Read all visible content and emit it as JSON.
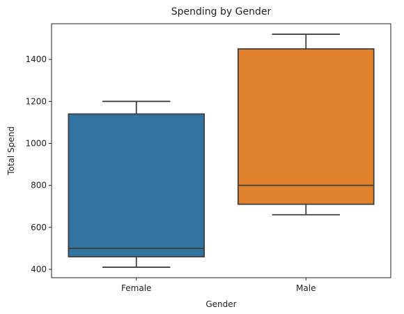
{
  "chart_data": {
    "type": "box",
    "title": "Spending by Gender",
    "xlabel": "Gender",
    "ylabel": "Total Spend",
    "ylim": [
      360,
      1570
    ],
    "yticks": [
      400,
      600,
      800,
      1000,
      1200,
      1400
    ],
    "categories": [
      "Female",
      "Male"
    ],
    "boxes": [
      {
        "category": "Female",
        "whisker_low": 410,
        "q1": 460,
        "median": 500,
        "q3": 1140,
        "whisker_high": 1200,
        "color": "#3274a1"
      },
      {
        "category": "Male",
        "whisker_low": 660,
        "q1": 710,
        "median": 800,
        "q3": 1450,
        "whisker_high": 1520,
        "color": "#e1812c"
      }
    ],
    "grid": false,
    "legend": "none",
    "edge_color": "#3f3f3f"
  }
}
